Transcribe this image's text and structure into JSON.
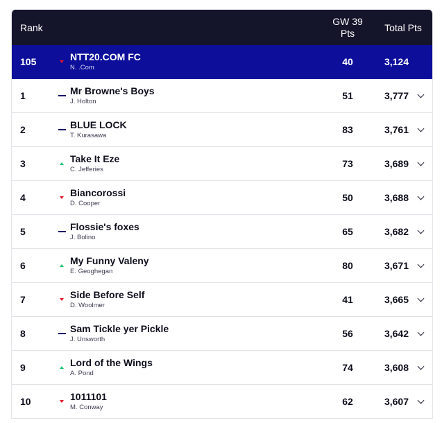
{
  "header": {
    "rank": "Rank",
    "gw_line1": "GW 39",
    "gw_line2": "Pts",
    "total": "Total Pts"
  },
  "highlight_row": {
    "rank": "105",
    "movement": "down",
    "team": "NTT20.COM FC",
    "manager": "N. .Com",
    "gw": "40",
    "total": "3,124"
  },
  "rows": [
    {
      "rank": "1",
      "movement": "same",
      "team": "Mr Browne's Boys",
      "manager": "J. Holton",
      "gw": "51",
      "total": "3,777"
    },
    {
      "rank": "2",
      "movement": "same",
      "team": "BLUE LOCK",
      "manager": "T. Kurasawa",
      "gw": "83",
      "total": "3,761"
    },
    {
      "rank": "3",
      "movement": "up",
      "team": "Take It Eze",
      "manager": "C. Jefferies",
      "gw": "73",
      "total": "3,689"
    },
    {
      "rank": "4",
      "movement": "down",
      "team": "Biancorossi",
      "manager": "D. Cooper",
      "gw": "50",
      "total": "3,688"
    },
    {
      "rank": "5",
      "movement": "same",
      "team": "Flossie's foxes",
      "manager": "J. Bolino",
      "gw": "65",
      "total": "3,682"
    },
    {
      "rank": "6",
      "movement": "up",
      "team": "My Funny Valeny",
      "manager": "E. Geoghegan",
      "gw": "80",
      "total": "3,671"
    },
    {
      "rank": "7",
      "movement": "down",
      "team": "Side Before Self",
      "manager": "D. Woolmer",
      "gw": "41",
      "total": "3,665"
    },
    {
      "rank": "8",
      "movement": "same",
      "team": "Sam Tickle yer Pickle",
      "manager": "J. Unsworth",
      "gw": "56",
      "total": "3,642"
    },
    {
      "rank": "9",
      "movement": "up",
      "team": "Lord of the Wings",
      "manager": "A. Pond",
      "gw": "74",
      "total": "3,608"
    },
    {
      "rank": "10",
      "movement": "down",
      "team": "1011101",
      "manager": "M. Conway",
      "gw": "62",
      "total": "3,607"
    }
  ],
  "icons": {
    "expand": "chevron-down-icon",
    "up": "arrow-up-icon",
    "down": "arrow-down-icon",
    "same": "no-change-icon"
  }
}
